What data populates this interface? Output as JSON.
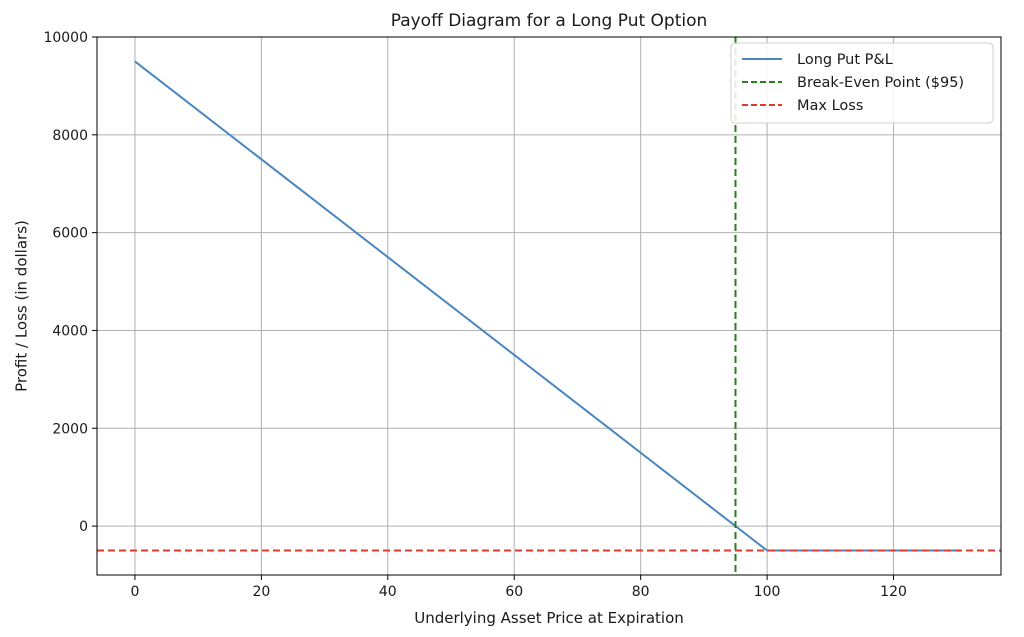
{
  "chart_data": {
    "type": "line",
    "title": "Payoff Diagram for a Long Put Option",
    "xlabel": "Underlying Asset Price at Expiration",
    "ylabel": "Profit / Loss (in dollars)",
    "xlim": [
      -6,
      137
    ],
    "ylim": [
      -1000,
      10000
    ],
    "xticks": [
      0,
      20,
      40,
      60,
      80,
      100,
      120
    ],
    "yticks": [
      0,
      2000,
      4000,
      6000,
      8000,
      10000
    ],
    "grid": true,
    "legend_position": "top-right",
    "series": [
      {
        "name": "Long Put P&L",
        "style": "solid",
        "color": "#4a86c0",
        "x": [
          0,
          100,
          130
        ],
        "y": [
          9500,
          -500,
          -500
        ]
      }
    ],
    "vlines": [
      {
        "name": "Break-Even Point ($95)",
        "x": 95,
        "style": "dashed",
        "color": "#2e7d1f"
      }
    ],
    "hlines": [
      {
        "name": "Max Loss",
        "y": -500,
        "style": "dashed",
        "color": "#e03a2f"
      }
    ]
  }
}
